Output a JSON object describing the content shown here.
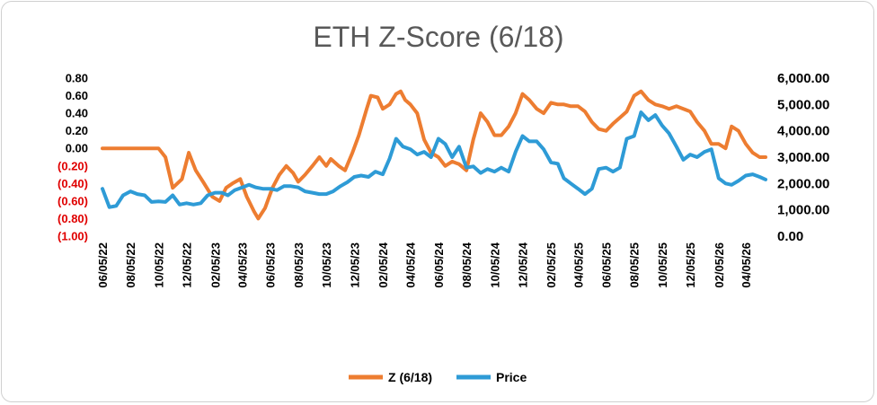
{
  "chart_data": {
    "type": "line",
    "title": "ETH Z-Score (6/18)",
    "colors": {
      "z": "#ED7D31",
      "price": "#2E9BD6",
      "negative_tick": "#E00000",
      "positive_tick": "#000000"
    },
    "x_start": "2022-06-05",
    "x_end": "2026-05-18",
    "x_tick_labels": [
      "06/05/22",
      "08/05/22",
      "10/05/22",
      "12/05/22",
      "02/05/23",
      "04/05/23",
      "06/05/23",
      "08/05/23",
      "10/05/23",
      "12/05/23",
      "02/05/24",
      "04/05/24",
      "06/05/24",
      "08/05/24",
      "10/05/24",
      "12/05/24",
      "02/05/25",
      "04/05/25",
      "06/05/25",
      "08/05/25",
      "10/05/25",
      "12/05/25",
      "02/05/26",
      "04/05/26"
    ],
    "y_left": {
      "ylim": [
        -1.0,
        0.8
      ],
      "tick_labels": [
        "0.80",
        "0.60",
        "0.40",
        "0.20",
        "0.00",
        "(0.20)",
        "(0.40)",
        "(0.60)",
        "(0.80)",
        "(1.00)"
      ]
    },
    "y_right": {
      "ylim": [
        0,
        6000
      ],
      "tick_labels": [
        "6,000.00",
        "5,000.00",
        "4,000.00",
        "3,000.00",
        "2,000.00",
        "1,000.00",
        "0.00"
      ]
    },
    "legend_position": "bottom",
    "series": [
      {
        "name": "Z (6/18)",
        "axis": "left",
        "points": [
          [
            "2022-06-05",
            0.0
          ],
          [
            "2022-08-01",
            0.0
          ],
          [
            "2022-10-05",
            0.0
          ],
          [
            "2022-10-20",
            -0.1
          ],
          [
            "2022-11-05",
            -0.45
          ],
          [
            "2022-11-25",
            -0.35
          ],
          [
            "2022-12-10",
            -0.05
          ],
          [
            "2022-12-25",
            -0.25
          ],
          [
            "2023-01-10",
            -0.38
          ],
          [
            "2023-01-30",
            -0.55
          ],
          [
            "2023-02-15",
            -0.6
          ],
          [
            "2023-03-01",
            -0.45
          ],
          [
            "2023-03-15",
            -0.4
          ],
          [
            "2023-04-01",
            -0.35
          ],
          [
            "2023-04-15",
            -0.55
          ],
          [
            "2023-05-01",
            -0.72
          ],
          [
            "2023-05-10",
            -0.8
          ],
          [
            "2023-05-25",
            -0.68
          ],
          [
            "2023-06-10",
            -0.45
          ],
          [
            "2023-06-25",
            -0.3
          ],
          [
            "2023-07-10",
            -0.2
          ],
          [
            "2023-07-25",
            -0.28
          ],
          [
            "2023-08-05",
            -0.38
          ],
          [
            "2023-08-20",
            -0.3
          ],
          [
            "2023-09-05",
            -0.2
          ],
          [
            "2023-09-20",
            -0.1
          ],
          [
            "2023-10-05",
            -0.2
          ],
          [
            "2023-10-15",
            -0.12
          ],
          [
            "2023-11-01",
            -0.2
          ],
          [
            "2023-11-15",
            -0.25
          ],
          [
            "2023-12-01",
            -0.05
          ],
          [
            "2023-12-15",
            0.15
          ],
          [
            "2024-01-01",
            0.45
          ],
          [
            "2024-01-10",
            0.6
          ],
          [
            "2024-01-25",
            0.58
          ],
          [
            "2024-02-05",
            0.45
          ],
          [
            "2024-02-20",
            0.5
          ],
          [
            "2024-03-05",
            0.62
          ],
          [
            "2024-03-15",
            0.65
          ],
          [
            "2024-03-25",
            0.55
          ],
          [
            "2024-04-05",
            0.5
          ],
          [
            "2024-04-20",
            0.4
          ],
          [
            "2024-05-05",
            0.1
          ],
          [
            "2024-05-20",
            -0.05
          ],
          [
            "2024-06-05",
            -0.1
          ],
          [
            "2024-06-20",
            -0.2
          ],
          [
            "2024-07-05",
            -0.15
          ],
          [
            "2024-07-20",
            -0.18
          ],
          [
            "2024-08-05",
            -0.25
          ],
          [
            "2024-08-20",
            0.1
          ],
          [
            "2024-09-05",
            0.4
          ],
          [
            "2024-09-20",
            0.3
          ],
          [
            "2024-10-05",
            0.15
          ],
          [
            "2024-10-20",
            0.15
          ],
          [
            "2024-11-05",
            0.25
          ],
          [
            "2024-11-20",
            0.4
          ],
          [
            "2024-12-05",
            0.62
          ],
          [
            "2024-12-20",
            0.55
          ],
          [
            "2025-01-05",
            0.45
          ],
          [
            "2025-01-20",
            0.4
          ],
          [
            "2025-02-05",
            0.52
          ],
          [
            "2025-02-20",
            0.5
          ],
          [
            "2025-03-05",
            0.5
          ],
          [
            "2025-03-20",
            0.48
          ],
          [
            "2025-04-05",
            0.48
          ],
          [
            "2025-04-20",
            0.42
          ],
          [
            "2025-05-05",
            0.3
          ],
          [
            "2025-05-20",
            0.22
          ],
          [
            "2025-06-05",
            0.2
          ],
          [
            "2025-06-20",
            0.28
          ],
          [
            "2025-07-05",
            0.35
          ],
          [
            "2025-07-20",
            0.42
          ],
          [
            "2025-08-05",
            0.6
          ],
          [
            "2025-08-20",
            0.65
          ],
          [
            "2025-09-05",
            0.55
          ],
          [
            "2025-09-20",
            0.5
          ],
          [
            "2025-10-05",
            0.48
          ],
          [
            "2025-10-20",
            0.45
          ],
          [
            "2025-11-05",
            0.48
          ],
          [
            "2025-11-20",
            0.45
          ],
          [
            "2025-12-05",
            0.42
          ],
          [
            "2025-12-20",
            0.3
          ],
          [
            "2026-01-05",
            0.2
          ],
          [
            "2026-01-20",
            0.05
          ],
          [
            "2026-02-05",
            0.05
          ],
          [
            "2026-02-20",
            0.0
          ],
          [
            "2026-03-05",
            0.25
          ],
          [
            "2026-03-20",
            0.2
          ],
          [
            "2026-04-05",
            0.05
          ],
          [
            "2026-04-20",
            -0.05
          ],
          [
            "2026-05-05",
            -0.1
          ],
          [
            "2026-05-18",
            -0.1
          ]
        ]
      },
      {
        "name": "Price",
        "axis": "right",
        "points": [
          [
            "2022-06-05",
            1800
          ],
          [
            "2022-06-20",
            1100
          ],
          [
            "2022-07-05",
            1150
          ],
          [
            "2022-07-20",
            1550
          ],
          [
            "2022-08-05",
            1700
          ],
          [
            "2022-08-20",
            1600
          ],
          [
            "2022-09-05",
            1550
          ],
          [
            "2022-09-20",
            1300
          ],
          [
            "2022-10-05",
            1320
          ],
          [
            "2022-10-20",
            1300
          ],
          [
            "2022-11-05",
            1550
          ],
          [
            "2022-11-20",
            1200
          ],
          [
            "2022-12-05",
            1250
          ],
          [
            "2022-12-20",
            1200
          ],
          [
            "2023-01-05",
            1250
          ],
          [
            "2023-01-20",
            1550
          ],
          [
            "2023-02-05",
            1650
          ],
          [
            "2023-02-20",
            1650
          ],
          [
            "2023-03-05",
            1550
          ],
          [
            "2023-03-20",
            1750
          ],
          [
            "2023-04-05",
            1850
          ],
          [
            "2023-04-20",
            1950
          ],
          [
            "2023-05-05",
            1850
          ],
          [
            "2023-05-20",
            1800
          ],
          [
            "2023-06-05",
            1800
          ],
          [
            "2023-06-20",
            1750
          ],
          [
            "2023-07-05",
            1900
          ],
          [
            "2023-07-20",
            1900
          ],
          [
            "2023-08-05",
            1850
          ],
          [
            "2023-08-20",
            1700
          ],
          [
            "2023-09-05",
            1650
          ],
          [
            "2023-09-20",
            1600
          ],
          [
            "2023-10-05",
            1600
          ],
          [
            "2023-10-20",
            1700
          ],
          [
            "2023-11-05",
            1900
          ],
          [
            "2023-11-20",
            2050
          ],
          [
            "2023-12-05",
            2250
          ],
          [
            "2023-12-20",
            2300
          ],
          [
            "2024-01-05",
            2250
          ],
          [
            "2024-01-20",
            2450
          ],
          [
            "2024-02-05",
            2350
          ],
          [
            "2024-02-20",
            2950
          ],
          [
            "2024-03-05",
            3700
          ],
          [
            "2024-03-20",
            3400
          ],
          [
            "2024-04-05",
            3300
          ],
          [
            "2024-04-20",
            3100
          ],
          [
            "2024-05-05",
            3200
          ],
          [
            "2024-05-20",
            3000
          ],
          [
            "2024-06-05",
            3700
          ],
          [
            "2024-06-20",
            3500
          ],
          [
            "2024-07-05",
            3000
          ],
          [
            "2024-07-20",
            3400
          ],
          [
            "2024-08-05",
            2600
          ],
          [
            "2024-08-20",
            2650
          ],
          [
            "2024-09-05",
            2400
          ],
          [
            "2024-09-20",
            2550
          ],
          [
            "2024-10-05",
            2450
          ],
          [
            "2024-10-20",
            2600
          ],
          [
            "2024-11-05",
            2450
          ],
          [
            "2024-11-20",
            3200
          ],
          [
            "2024-12-05",
            3800
          ],
          [
            "2024-12-20",
            3600
          ],
          [
            "2025-01-05",
            3600
          ],
          [
            "2025-01-20",
            3300
          ],
          [
            "2025-02-05",
            2800
          ],
          [
            "2025-02-20",
            2750
          ],
          [
            "2025-03-05",
            2200
          ],
          [
            "2025-03-20",
            2000
          ],
          [
            "2025-04-05",
            1800
          ],
          [
            "2025-04-20",
            1600
          ],
          [
            "2025-05-05",
            1800
          ],
          [
            "2025-05-20",
            2550
          ],
          [
            "2025-06-05",
            2600
          ],
          [
            "2025-06-20",
            2450
          ],
          [
            "2025-07-05",
            2600
          ],
          [
            "2025-07-20",
            3700
          ],
          [
            "2025-08-05",
            3800
          ],
          [
            "2025-08-20",
            4700
          ],
          [
            "2025-09-05",
            4400
          ],
          [
            "2025-09-20",
            4600
          ],
          [
            "2025-10-05",
            4200
          ],
          [
            "2025-10-20",
            3900
          ],
          [
            "2025-11-05",
            3400
          ],
          [
            "2025-11-20",
            2900
          ],
          [
            "2025-12-05",
            3100
          ],
          [
            "2025-12-20",
            3000
          ],
          [
            "2026-01-05",
            3200
          ],
          [
            "2026-01-20",
            3300
          ],
          [
            "2026-02-05",
            2200
          ],
          [
            "2026-02-20",
            2000
          ],
          [
            "2026-03-05",
            1950
          ],
          [
            "2026-03-20",
            2100
          ],
          [
            "2026-04-05",
            2300
          ],
          [
            "2026-04-20",
            2350
          ],
          [
            "2026-05-05",
            2250
          ],
          [
            "2026-05-18",
            2150
          ]
        ]
      }
    ]
  }
}
